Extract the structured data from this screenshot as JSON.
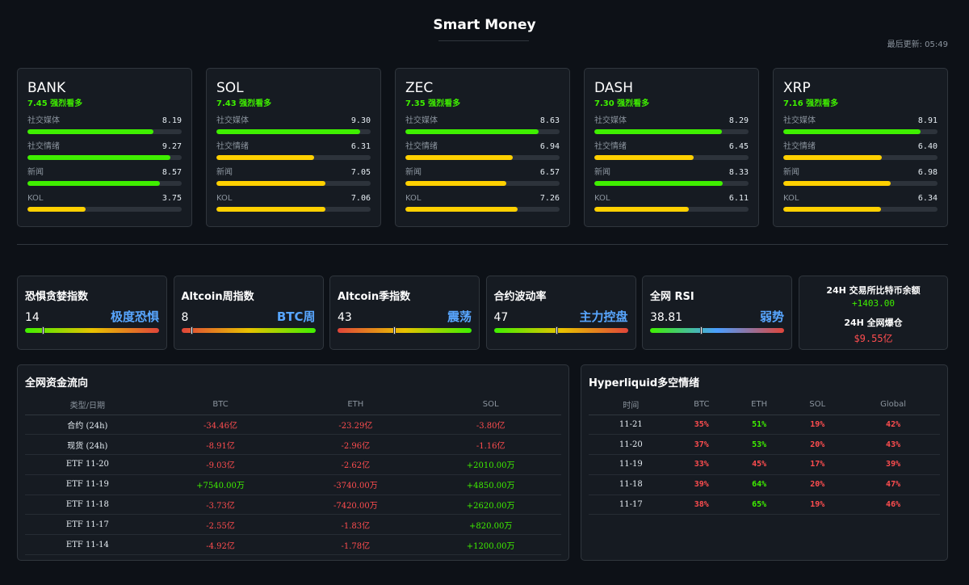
{
  "header": {
    "title": "Smart Money",
    "updated": "最后更新: 05:49"
  },
  "colors": {
    "green": "#3fef00",
    "yellow": "#ffd000",
    "red": "#ff4d4f",
    "blue": "#58a6ff"
  },
  "coins": [
    {
      "name": "BANK",
      "score": "7.45 强烈看多",
      "metrics": [
        {
          "label": "社交媒体",
          "value": "8.19"
        },
        {
          "label": "社交情绪",
          "value": "9.27"
        },
        {
          "label": "新闻",
          "value": "8.57"
        },
        {
          "label": "KOL",
          "value": "3.75"
        }
      ]
    },
    {
      "name": "SOL",
      "score": "7.43 强烈看多",
      "metrics": [
        {
          "label": "社交媒体",
          "value": "9.30"
        },
        {
          "label": "社交情绪",
          "value": "6.31"
        },
        {
          "label": "新闻",
          "value": "7.05"
        },
        {
          "label": "KOL",
          "value": "7.06"
        }
      ]
    },
    {
      "name": "ZEC",
      "score": "7.35 强烈看多",
      "metrics": [
        {
          "label": "社交媒体",
          "value": "8.63"
        },
        {
          "label": "社交情绪",
          "value": "6.94"
        },
        {
          "label": "新闻",
          "value": "6.57"
        },
        {
          "label": "KOL",
          "value": "7.26"
        }
      ]
    },
    {
      "name": "DASH",
      "score": "7.30 强烈看多",
      "metrics": [
        {
          "label": "社交媒体",
          "value": "8.29"
        },
        {
          "label": "社交情绪",
          "value": "6.45"
        },
        {
          "label": "新闻",
          "value": "8.33"
        },
        {
          "label": "KOL",
          "value": "6.11"
        }
      ]
    },
    {
      "name": "XRP",
      "score": "7.16 强烈看多",
      "metrics": [
        {
          "label": "社交媒体",
          "value": "8.91"
        },
        {
          "label": "社交情绪",
          "value": "6.40"
        },
        {
          "label": "新闻",
          "value": "6.98"
        },
        {
          "label": "KOL",
          "value": "6.34"
        }
      ]
    }
  ],
  "indicators": [
    {
      "title": "恐惧贪婪指数",
      "value": "14",
      "status": "极度恐惧",
      "level": 0.14,
      "gradient": "greenred"
    },
    {
      "title": "Altcoin周指数",
      "value": "8",
      "status": "BTC周",
      "level": 0.08,
      "gradient": "redgreen"
    },
    {
      "title": "Altcoin季指数",
      "value": "43",
      "status": "震荡",
      "level": 0.43,
      "gradient": "redgreen"
    },
    {
      "title": "合约波动率",
      "value": "47",
      "status": "主力控盘",
      "level": 0.47,
      "gradient": "greenred"
    },
    {
      "title": "全网 RSI",
      "value": "38.81",
      "status": "弱势",
      "level": 0.3881,
      "gradient": "greenbluered"
    }
  ],
  "exchange": {
    "balance_label": "24H 交易所比特币余额",
    "balance_value": "+1403.00",
    "liq_label": "24H 全网爆仓",
    "liq_value": "$9.55亿"
  },
  "flow": {
    "title": "全网资金流向",
    "headers": [
      "类型/日期",
      "BTC",
      "ETH",
      "SOL"
    ],
    "rows": [
      [
        "合约 (24h)",
        "-34.46亿",
        "-23.29亿",
        "-3.80亿"
      ],
      [
        "现货 (24h)",
        "-8.91亿",
        "-2.96亿",
        "-1.16亿"
      ],
      [
        "ETF 11-20",
        "-9.03亿",
        "-2.62亿",
        "+2010.00万"
      ],
      [
        "ETF 11-19",
        "+7540.00万",
        "-3740.00万",
        "+4850.00万"
      ],
      [
        "ETF 11-18",
        "-3.73亿",
        "-7420.00万",
        "+2620.00万"
      ],
      [
        "ETF 11-17",
        "-2.55亿",
        "-1.83亿",
        "+820.00万"
      ],
      [
        "ETF 11-14",
        "-4.92亿",
        "-1.78亿",
        "+1200.00万"
      ]
    ]
  },
  "hyperliquid": {
    "title": "Hyperliquid多空情绪",
    "headers": [
      "时间",
      "BTC",
      "ETH",
      "SOL",
      "Global"
    ],
    "rows": [
      [
        "11-21",
        "35%",
        "51%",
        "19%",
        "42%"
      ],
      [
        "11-20",
        "37%",
        "53%",
        "20%",
        "43%"
      ],
      [
        "11-19",
        "33%",
        "45%",
        "17%",
        "39%"
      ],
      [
        "11-18",
        "39%",
        "64%",
        "20%",
        "47%"
      ],
      [
        "11-17",
        "38%",
        "65%",
        "19%",
        "46%"
      ]
    ]
  }
}
